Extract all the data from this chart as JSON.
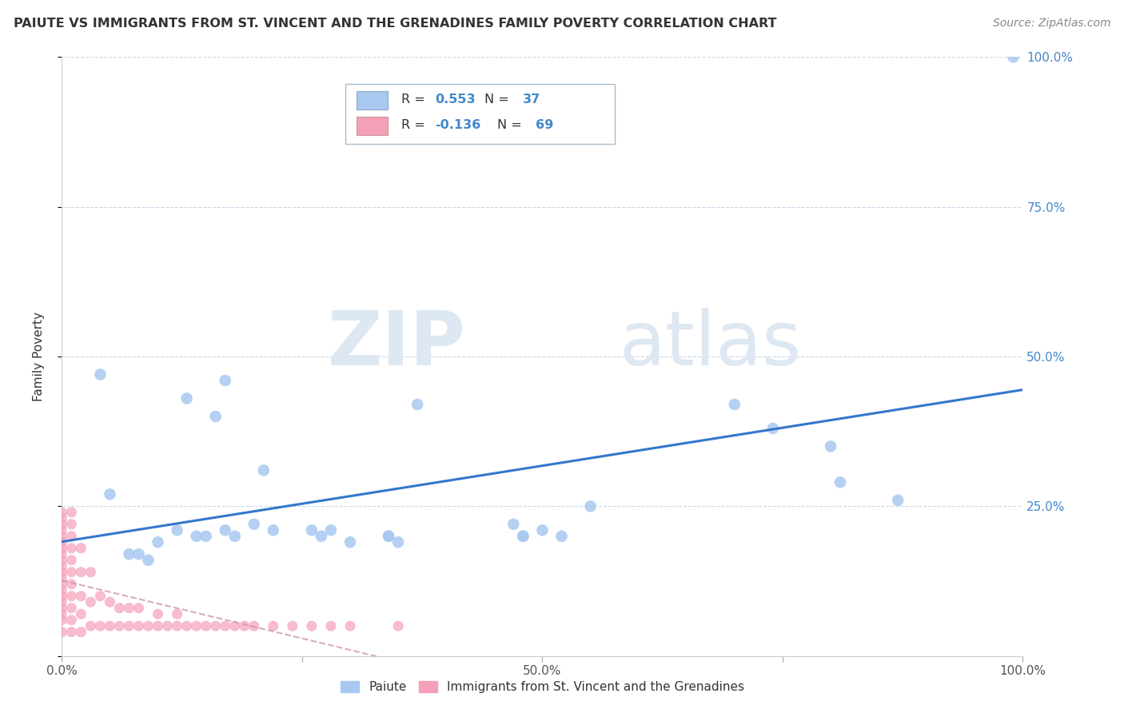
{
  "title": "PAIUTE VS IMMIGRANTS FROM ST. VINCENT AND THE GRENADINES FAMILY POVERTY CORRELATION CHART",
  "source": "Source: ZipAtlas.com",
  "ylabel": "Family Poverty",
  "legend_label1": "Paiute",
  "legend_label2": "Immigrants from St. Vincent and the Grenadines",
  "r1": 0.553,
  "n1": 37,
  "r2": -0.136,
  "n2": 69,
  "color1": "#a8c8f0",
  "color2": "#f4a0b8",
  "trendline_color": "#3377cc",
  "trendline2_color": "#cc99aa",
  "watermark_zip": "ZIP",
  "watermark_atlas": "atlas",
  "xlim": [
    0,
    1.0
  ],
  "ylim": [
    0,
    1.0
  ],
  "paiute_x": [
    0.99,
    0.04,
    0.13,
    0.16,
    0.17,
    0.1,
    0.12,
    0.14,
    0.15,
    0.17,
    0.2,
    0.18,
    0.22,
    0.27,
    0.28,
    0.3,
    0.35,
    0.37,
    0.47,
    0.5,
    0.52,
    0.55,
    0.21,
    0.7,
    0.74,
    0.8,
    0.81,
    0.87,
    0.07,
    0.08,
    0.09,
    0.26,
    0.34,
    0.34,
    0.48,
    0.48,
    0.05
  ],
  "paiute_y": [
    1.0,
    0.47,
    0.43,
    0.4,
    0.46,
    0.19,
    0.21,
    0.2,
    0.2,
    0.21,
    0.22,
    0.2,
    0.21,
    0.2,
    0.21,
    0.19,
    0.19,
    0.42,
    0.22,
    0.21,
    0.2,
    0.25,
    0.31,
    0.42,
    0.38,
    0.35,
    0.29,
    0.26,
    0.17,
    0.17,
    0.16,
    0.21,
    0.2,
    0.2,
    0.2,
    0.2,
    0.27
  ],
  "svgr_x": [
    0.0,
    0.0,
    0.0,
    0.0,
    0.0,
    0.0,
    0.0,
    0.0,
    0.0,
    0.0,
    0.0,
    0.0,
    0.0,
    0.0,
    0.0,
    0.0,
    0.0,
    0.0,
    0.0,
    0.0,
    0.01,
    0.01,
    0.01,
    0.01,
    0.01,
    0.01,
    0.01,
    0.01,
    0.01,
    0.01,
    0.01,
    0.02,
    0.02,
    0.02,
    0.02,
    0.02,
    0.03,
    0.03,
    0.03,
    0.04,
    0.04,
    0.05,
    0.05,
    0.06,
    0.06,
    0.07,
    0.07,
    0.08,
    0.08,
    0.09,
    0.1,
    0.1,
    0.11,
    0.12,
    0.12,
    0.13,
    0.14,
    0.15,
    0.16,
    0.17,
    0.18,
    0.19,
    0.2,
    0.22,
    0.24,
    0.26,
    0.28,
    0.3,
    0.35
  ],
  "svgr_y": [
    0.04,
    0.06,
    0.07,
    0.08,
    0.09,
    0.1,
    0.11,
    0.12,
    0.13,
    0.14,
    0.15,
    0.16,
    0.17,
    0.18,
    0.19,
    0.2,
    0.21,
    0.22,
    0.23,
    0.24,
    0.04,
    0.06,
    0.08,
    0.1,
    0.12,
    0.14,
    0.16,
    0.18,
    0.2,
    0.22,
    0.24,
    0.04,
    0.07,
    0.1,
    0.14,
    0.18,
    0.05,
    0.09,
    0.14,
    0.05,
    0.1,
    0.05,
    0.09,
    0.05,
    0.08,
    0.05,
    0.08,
    0.05,
    0.08,
    0.05,
    0.05,
    0.07,
    0.05,
    0.05,
    0.07,
    0.05,
    0.05,
    0.05,
    0.05,
    0.05,
    0.05,
    0.05,
    0.05,
    0.05,
    0.05,
    0.05,
    0.05,
    0.05,
    0.05
  ]
}
